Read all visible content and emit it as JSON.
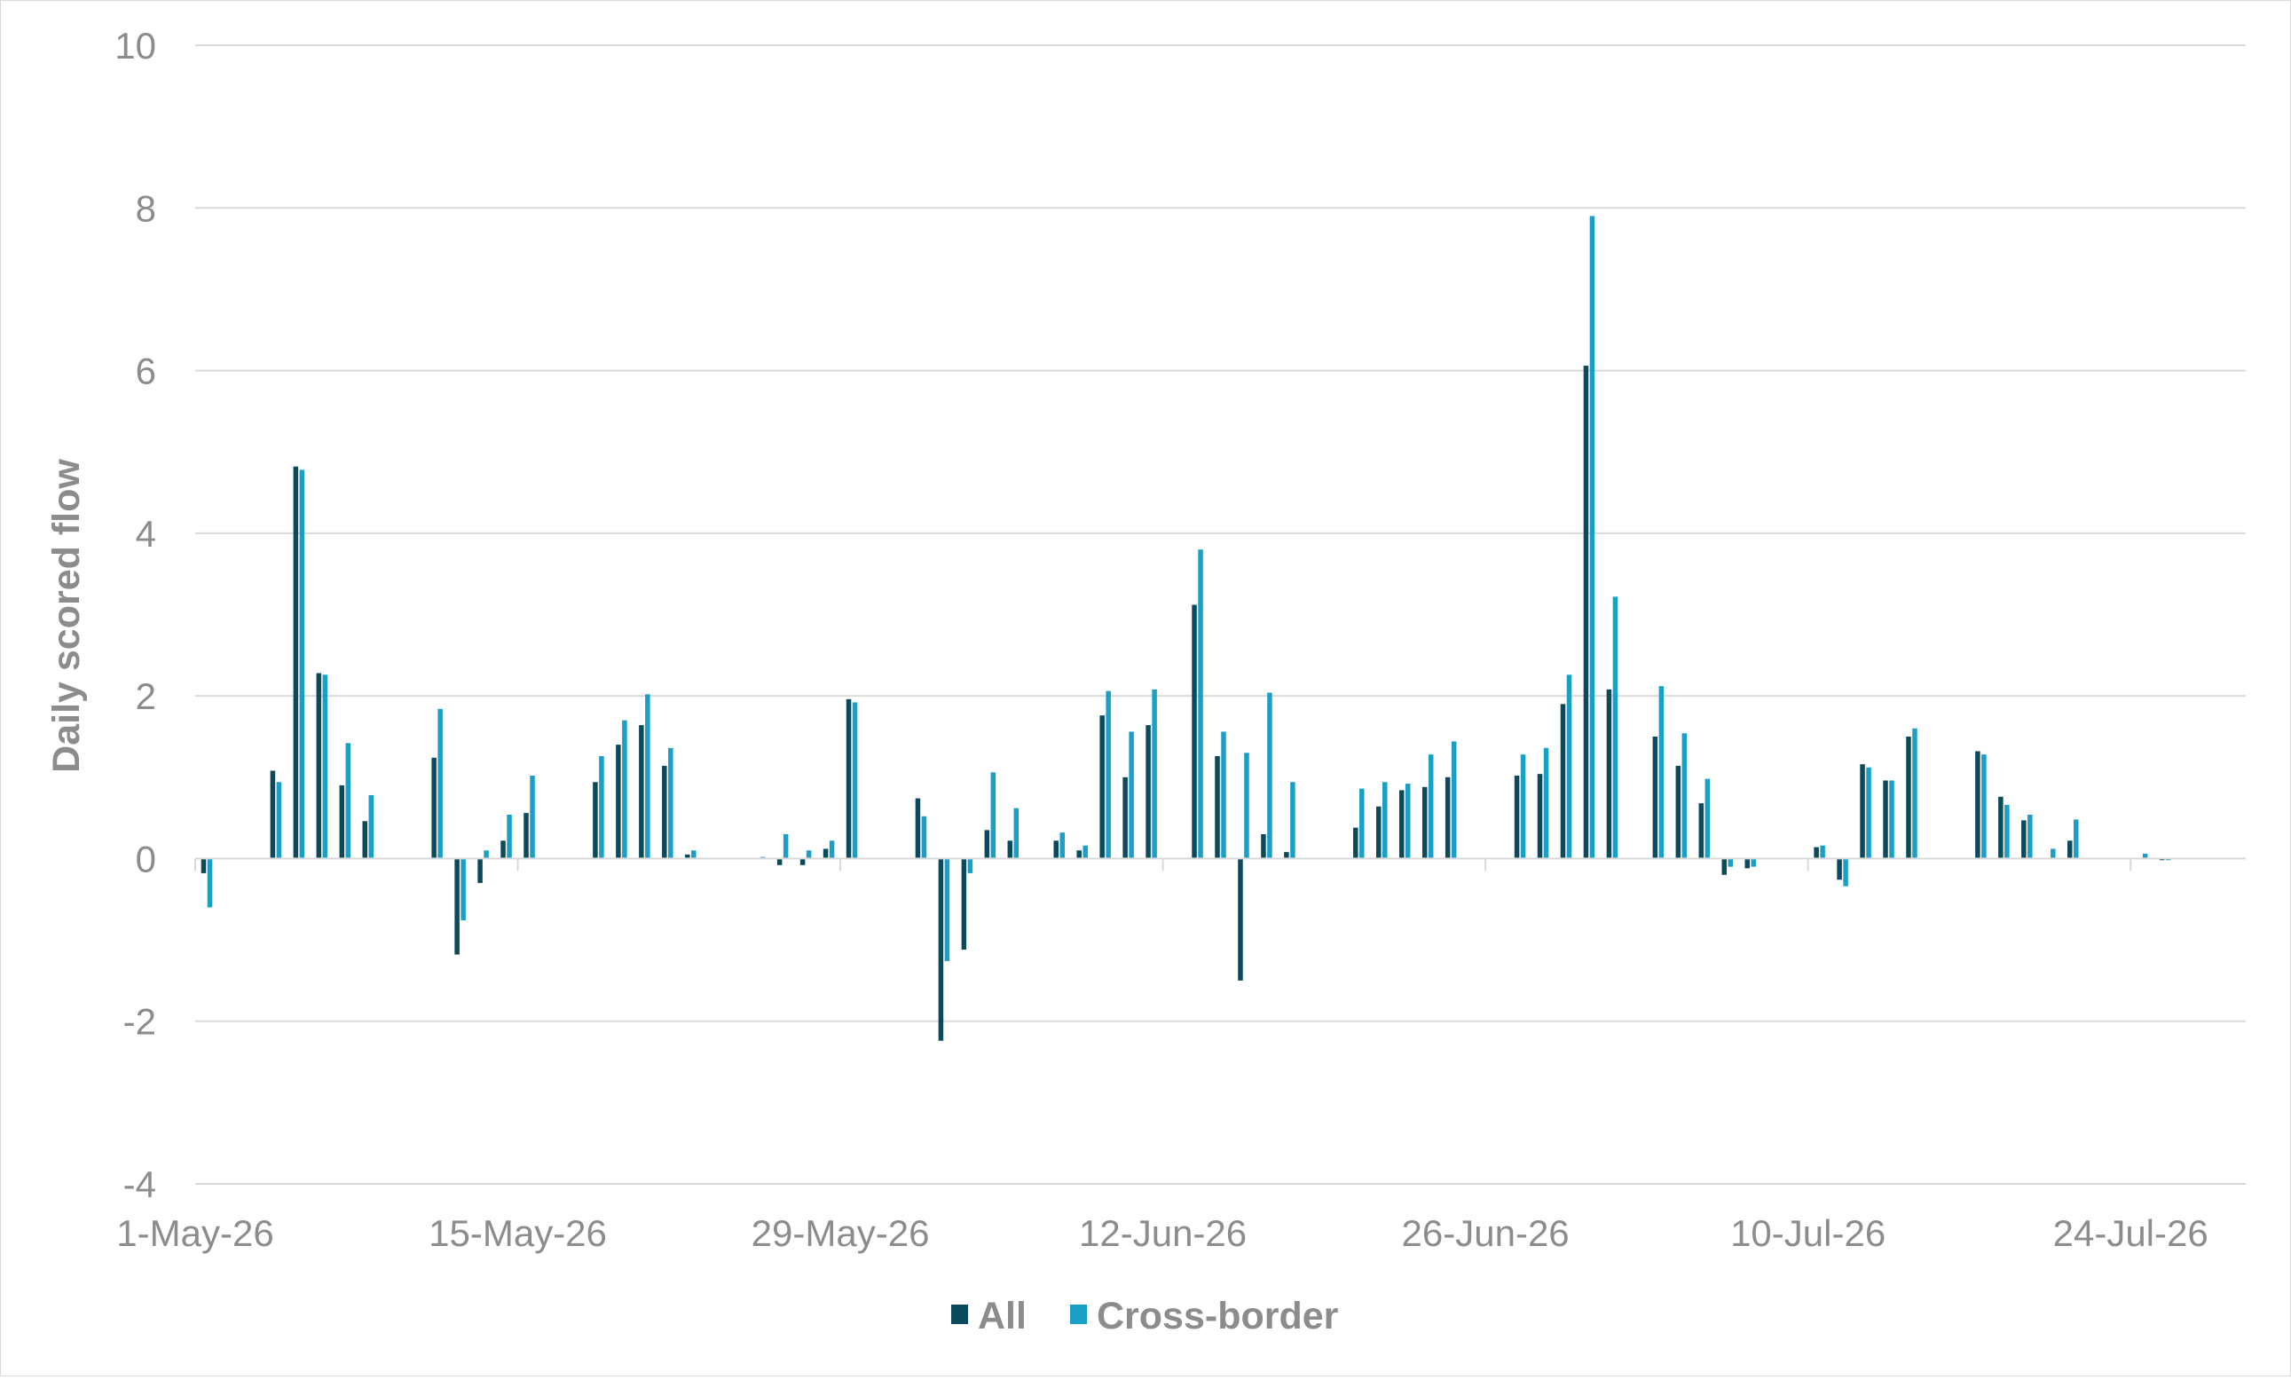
{
  "chart_data": {
    "type": "bar",
    "ylabel": "Daily scored flow",
    "xlabel": "",
    "ylim": [
      -4,
      10
    ],
    "yticks": [
      -4,
      -2,
      0,
      2,
      4,
      6,
      8,
      10
    ],
    "xticks": [
      "1-May-26",
      "15-May-26",
      "29-May-26",
      "12-Jun-26",
      "26-Jun-26",
      "10-Jul-26",
      "24-Jul-26"
    ],
    "grid": true,
    "legend_position": "bottom",
    "colors": {
      "All": "#0b4a5c",
      "Cross-border": "#1aa0c8"
    },
    "x": [
      "1-May-26",
      "2-May-26",
      "3-May-26",
      "4-May-26",
      "5-May-26",
      "6-May-26",
      "7-May-26",
      "8-May-26",
      "9-May-26",
      "10-May-26",
      "11-May-26",
      "12-May-26",
      "13-May-26",
      "14-May-26",
      "15-May-26",
      "16-May-26",
      "17-May-26",
      "18-May-26",
      "19-May-26",
      "20-May-26",
      "21-May-26",
      "22-May-26",
      "23-May-26",
      "24-May-26",
      "25-May-26",
      "26-May-26",
      "27-May-26",
      "28-May-26",
      "29-May-26",
      "30-May-26",
      "31-May-26",
      "1-Jun-26",
      "2-Jun-26",
      "3-Jun-26",
      "4-Jun-26",
      "5-Jun-26",
      "6-Jun-26",
      "7-Jun-26",
      "8-Jun-26",
      "9-Jun-26",
      "10-Jun-26",
      "11-Jun-26",
      "12-Jun-26",
      "13-Jun-26",
      "14-Jun-26",
      "15-Jun-26",
      "16-Jun-26",
      "17-Jun-26",
      "18-Jun-26",
      "19-Jun-26",
      "20-Jun-26",
      "21-Jun-26",
      "22-Jun-26",
      "23-Jun-26",
      "24-Jun-26",
      "25-Jun-26",
      "26-Jun-26",
      "27-Jun-26",
      "28-Jun-26",
      "29-Jun-26",
      "30-Jun-26",
      "1-Jul-26",
      "2-Jul-26",
      "3-Jul-26",
      "4-Jul-26",
      "5-Jul-26",
      "6-Jul-26",
      "7-Jul-26",
      "8-Jul-26",
      "9-Jul-26",
      "10-Jul-26",
      "11-Jul-26",
      "12-Jul-26",
      "13-Jul-26",
      "14-Jul-26",
      "15-Jul-26",
      "16-Jul-26",
      "17-Jul-26",
      "18-Jul-26",
      "19-Jul-26",
      "20-Jul-26",
      "21-Jul-26",
      "22-Jul-26",
      "23-Jul-26",
      "24-Jul-26",
      "25-Jul-26",
      "26-Jul-26",
      "27-Jul-26",
      "28-Jul-26"
    ],
    "series": [
      {
        "name": "All",
        "values": [
          -0.18,
          0,
          0,
          1.08,
          4.82,
          2.28,
          0.9,
          0.46,
          0,
          0,
          1.24,
          -1.18,
          -0.3,
          0.22,
          0.56,
          0,
          0,
          0.94,
          1.4,
          1.64,
          1.14,
          0.05,
          0,
          0,
          0,
          -0.08,
          -0.08,
          0.12,
          1.96,
          0,
          0,
          0.74,
          -2.24,
          -1.12,
          0.35,
          0.22,
          0,
          0.22,
          0.1,
          1.76,
          1.0,
          1.64,
          0,
          3.12,
          1.26,
          -1.5,
          0.3,
          0.08,
          0,
          0,
          0.38,
          0.64,
          0.84,
          0.88,
          1.0,
          0,
          0,
          1.02,
          1.04,
          1.9,
          6.06,
          2.08,
          0,
          1.5,
          1.14,
          0.68,
          -0.2,
          -0.12,
          0,
          0,
          0.14,
          -0.26,
          1.16,
          0.96,
          1.5,
          0,
          0,
          1.32,
          0.76,
          0.47,
          0,
          0.22,
          0,
          0,
          0,
          -0.02,
          0,
          0,
          0
        ],
        "label": "All"
      },
      {
        "name": "Cross-border",
        "values": [
          -0.6,
          0,
          0,
          0.94,
          4.78,
          2.26,
          1.42,
          0.78,
          0,
          0,
          1.84,
          -0.76,
          0.1,
          0.54,
          1.02,
          0,
          0,
          1.26,
          1.7,
          2.02,
          1.36,
          0.1,
          0,
          0,
          0.02,
          0.3,
          0.1,
          0.22,
          1.92,
          0,
          0,
          0.52,
          -1.26,
          -0.18,
          1.06,
          0.62,
          0,
          0.32,
          0.16,
          2.06,
          1.56,
          2.08,
          0,
          3.8,
          1.56,
          1.3,
          2.04,
          0.94,
          0,
          0,
          0.86,
          0.94,
          0.92,
          1.28,
          1.44,
          0,
          0,
          1.28,
          1.36,
          2.26,
          7.9,
          3.22,
          0,
          2.12,
          1.54,
          0.98,
          -0.1,
          -0.1,
          0,
          0,
          0.16,
          -0.34,
          1.12,
          0.96,
          1.6,
          0,
          0,
          1.28,
          0.66,
          0.54,
          0.12,
          0.48,
          0,
          0,
          0.06,
          -0.02,
          0,
          0,
          0
        ],
        "label": "Cross-border"
      }
    ]
  }
}
